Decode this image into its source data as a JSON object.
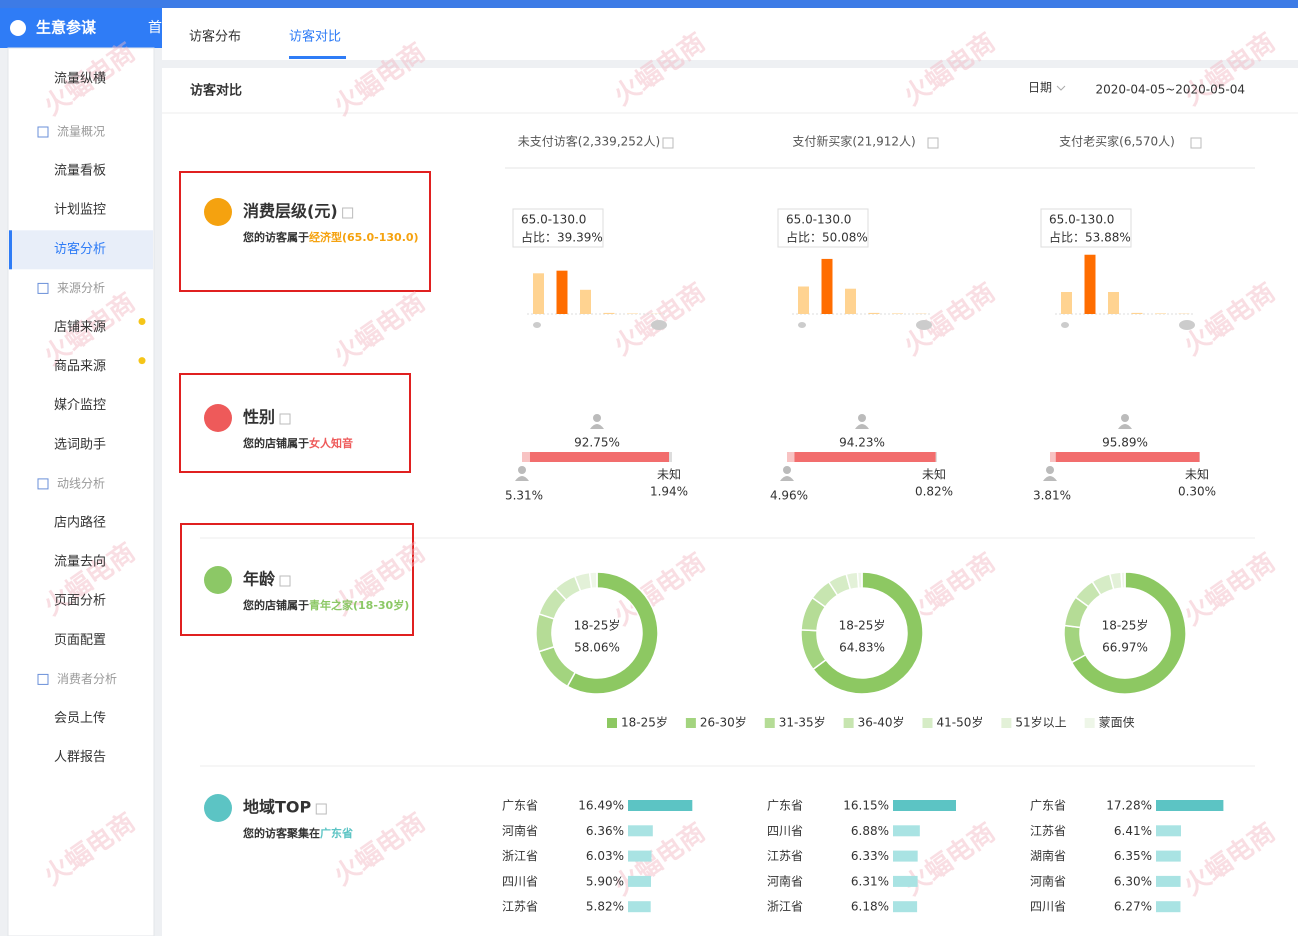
{
  "brand": "生意参谋",
  "top_nav": "首",
  "watermark": "火蝠电商",
  "sidebar": [
    {
      "label": "流量纵横",
      "type": "item"
    },
    {
      "label": "流量概况",
      "type": "group"
    },
    {
      "label": "流量看板",
      "type": "item"
    },
    {
      "label": "计划监控",
      "type": "item"
    },
    {
      "label": "访客分析",
      "type": "item",
      "active": true
    },
    {
      "label": "来源分析",
      "type": "group"
    },
    {
      "label": "店铺来源",
      "type": "item",
      "dot": true
    },
    {
      "label": "商品来源",
      "type": "item",
      "dot": true
    },
    {
      "label": "媒介监控",
      "type": "item"
    },
    {
      "label": "选词助手",
      "type": "item"
    },
    {
      "label": "动线分析",
      "type": "group"
    },
    {
      "label": "店内路径",
      "type": "item"
    },
    {
      "label": "流量去向",
      "type": "item"
    },
    {
      "label": "页面分析",
      "type": "item"
    },
    {
      "label": "页面配置",
      "type": "item"
    },
    {
      "label": "消费者分析",
      "type": "group"
    },
    {
      "label": "会员上传",
      "type": "item"
    },
    {
      "label": "人群报告",
      "type": "item"
    }
  ],
  "tabs": [
    {
      "label": "访客分布"
    },
    {
      "label": "访客对比",
      "active": true
    }
  ],
  "section": {
    "title": "访客对比",
    "date_label": "日期",
    "date_range": "2020-04-05~2020-05-04"
  },
  "columns": [
    "未支付访客(2,339,252人)",
    "支付新买家(21,912人)",
    "支付老买家(6,570人)"
  ],
  "consumption": {
    "title": "消费层级(元)",
    "desc": "您的访客属于",
    "highlight": "经济型(65.0-130.0)",
    "charts": [
      {
        "tip_range": "65.0-130.0",
        "tip_share": "占比：39.39%",
        "values": [
          37,
          39.39,
          22,
          1,
          0.4,
          0.2,
          0
        ],
        "highlight_index": 1
      },
      {
        "tip_range": "65.0-130.0",
        "tip_share": "占比：50.08%",
        "values": [
          25,
          50.08,
          23,
          1,
          0.5,
          0.3,
          0
        ],
        "highlight_index": 1
      },
      {
        "tip_range": "65.0-130.0",
        "tip_share": "占比：53.88%",
        "values": [
          20,
          53.88,
          20,
          1,
          0.5,
          0.3,
          0
        ],
        "highlight_index": 1
      }
    ]
  },
  "gender": {
    "title": "性别",
    "desc": "您的店铺属于",
    "highlight": "女人知音",
    "unknown_label": "未知",
    "charts": [
      {
        "female": {
          "value": 92.75,
          "label": "92.75%"
        },
        "male": {
          "value": 5.31,
          "label": "5.31%"
        },
        "unknown": {
          "value": 1.94,
          "label": "1.94%"
        }
      },
      {
        "female": {
          "value": 94.23,
          "label": "94.23%"
        },
        "male": {
          "value": 4.96,
          "label": "4.96%"
        },
        "unknown": {
          "value": 0.82,
          "label": "0.82%"
        }
      },
      {
        "female": {
          "value": 95.89,
          "label": "95.89%"
        },
        "male": {
          "value": 3.81,
          "label": "3.81%"
        },
        "unknown": {
          "value": 0.3,
          "label": "0.30%"
        }
      }
    ]
  },
  "age": {
    "title": "年龄",
    "desc": "您的店铺属于",
    "highlight": "青年之家(18-30岁)",
    "legend": [
      {
        "name": "18-25岁",
        "color": "#8dc862"
      },
      {
        "name": "26-30岁",
        "color": "#a3d47f"
      },
      {
        "name": "31-35岁",
        "color": "#b5dc96"
      },
      {
        "name": "36-40岁",
        "color": "#c7e5b0"
      },
      {
        "name": "41-50岁",
        "color": "#d6ecc6"
      },
      {
        "name": "51岁以上",
        "color": "#e3f1d8"
      },
      {
        "name": "蒙面侠",
        "color": "#eef6e8"
      }
    ],
    "charts": [
      {
        "center_label": "18-25岁",
        "center_value": "58.06%",
        "values": [
          58.06,
          12,
          10,
          8,
          6,
          4,
          1.94
        ]
      },
      {
        "center_label": "18-25岁",
        "center_value": "64.83%",
        "values": [
          64.83,
          11,
          9,
          6,
          5,
          3,
          1.17
        ]
      },
      {
        "center_label": "18-25岁",
        "center_value": "66.97%",
        "values": [
          66.97,
          10,
          8,
          6,
          5,
          3,
          1.03
        ]
      }
    ]
  },
  "region": {
    "title": "地域TOP",
    "desc": "您的访客聚集在",
    "highlight": "广东省",
    "charts": [
      {
        "rows": [
          {
            "name": "广东省",
            "value": 16.49,
            "label": "16.49%"
          },
          {
            "name": "河南省",
            "value": 6.36,
            "label": "6.36%"
          },
          {
            "name": "浙江省",
            "value": 6.03,
            "label": "6.03%"
          },
          {
            "name": "四川省",
            "value": 5.9,
            "label": "5.90%"
          },
          {
            "name": "江苏省",
            "value": 5.82,
            "label": "5.82%"
          }
        ]
      },
      {
        "rows": [
          {
            "name": "广东省",
            "value": 16.15,
            "label": "16.15%"
          },
          {
            "name": "四川省",
            "value": 6.88,
            "label": "6.88%"
          },
          {
            "name": "江苏省",
            "value": 6.33,
            "label": "6.33%"
          },
          {
            "name": "河南省",
            "value": 6.31,
            "label": "6.31%"
          },
          {
            "name": "浙江省",
            "value": 6.18,
            "label": "6.18%"
          }
        ]
      },
      {
        "rows": [
          {
            "name": "广东省",
            "value": 17.28,
            "label": "17.28%"
          },
          {
            "name": "江苏省",
            "value": 6.41,
            "label": "6.41%"
          },
          {
            "name": "湖南省",
            "value": 6.35,
            "label": "6.35%"
          },
          {
            "name": "河南省",
            "value": 6.3,
            "label": "6.30%"
          },
          {
            "name": "四川省",
            "value": 6.27,
            "label": "6.27%"
          }
        ]
      }
    ]
  }
}
